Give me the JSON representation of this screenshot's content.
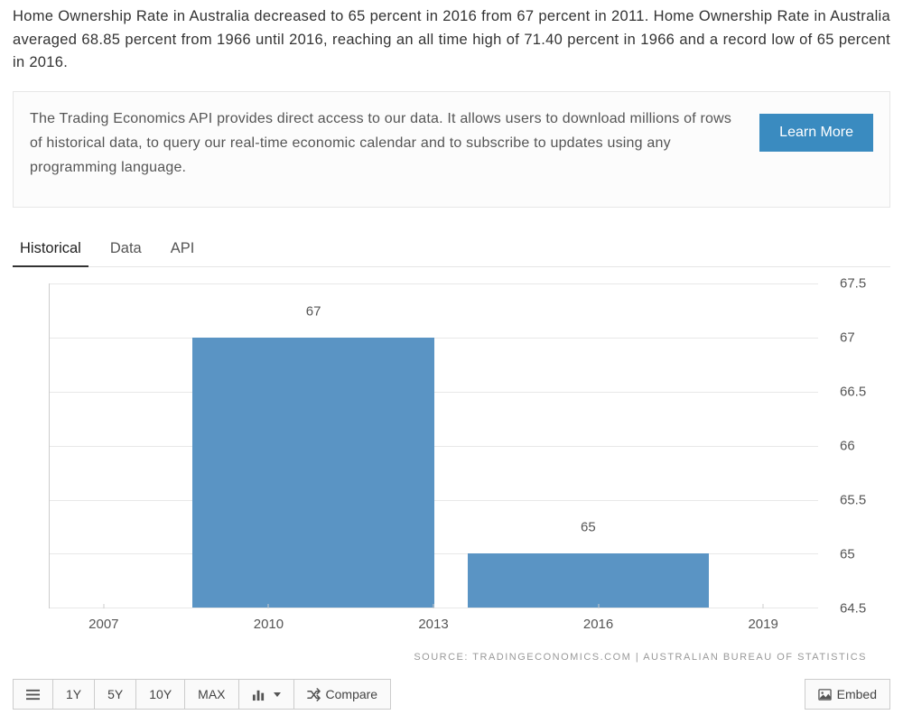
{
  "intro_text": "Home Ownership Rate in Australia decreased to 65 percent in 2016 from 67 percent in 2011. Home Ownership Rate in Australia averaged 68.85 percent from 1966 until 2016, reaching an all time high of 71.40 percent in 1966 and a record low of 65 percent in 2016.",
  "api_promo": {
    "text": "The Trading Economics API provides direct access to our data. It allows users to download millions of rows of historical data, to query our real-time economic calendar and to subscribe to updates using any programming language.",
    "button": "Learn More"
  },
  "tabs": {
    "items": [
      "Historical",
      "Data",
      "API"
    ],
    "active_index": 0
  },
  "chart": {
    "type": "bar",
    "background_color": "#ffffff",
    "grid_color": "#e8e8e8",
    "axis_color": "#cccccc",
    "label_color": "#555555",
    "bar_color": "#5a94c4",
    "ylim": [
      64.5,
      67.5
    ],
    "ytick_step": 0.5,
    "yticks": [
      64.5,
      65,
      65.5,
      66,
      66.5,
      67,
      67.5
    ],
    "xticks": [
      2007,
      2010,
      2013,
      2016,
      2019
    ],
    "xlim": [
      2006,
      2020
    ],
    "bars": [
      {
        "x_start": 2008.6,
        "x_end": 2013.0,
        "value": 67,
        "label": "67"
      },
      {
        "x_start": 2013.6,
        "x_end": 2018.0,
        "value": 65,
        "label": "65"
      }
    ],
    "label_fontsize": 15
  },
  "source_text": "SOURCE: TRADINGECONOMICS.COM | AUSTRALIAN BUREAU OF STATISTICS",
  "toolbar": {
    "range_buttons": [
      "1Y",
      "5Y",
      "10Y",
      "MAX"
    ],
    "compare_label": "Compare",
    "embed_label": "Embed"
  }
}
